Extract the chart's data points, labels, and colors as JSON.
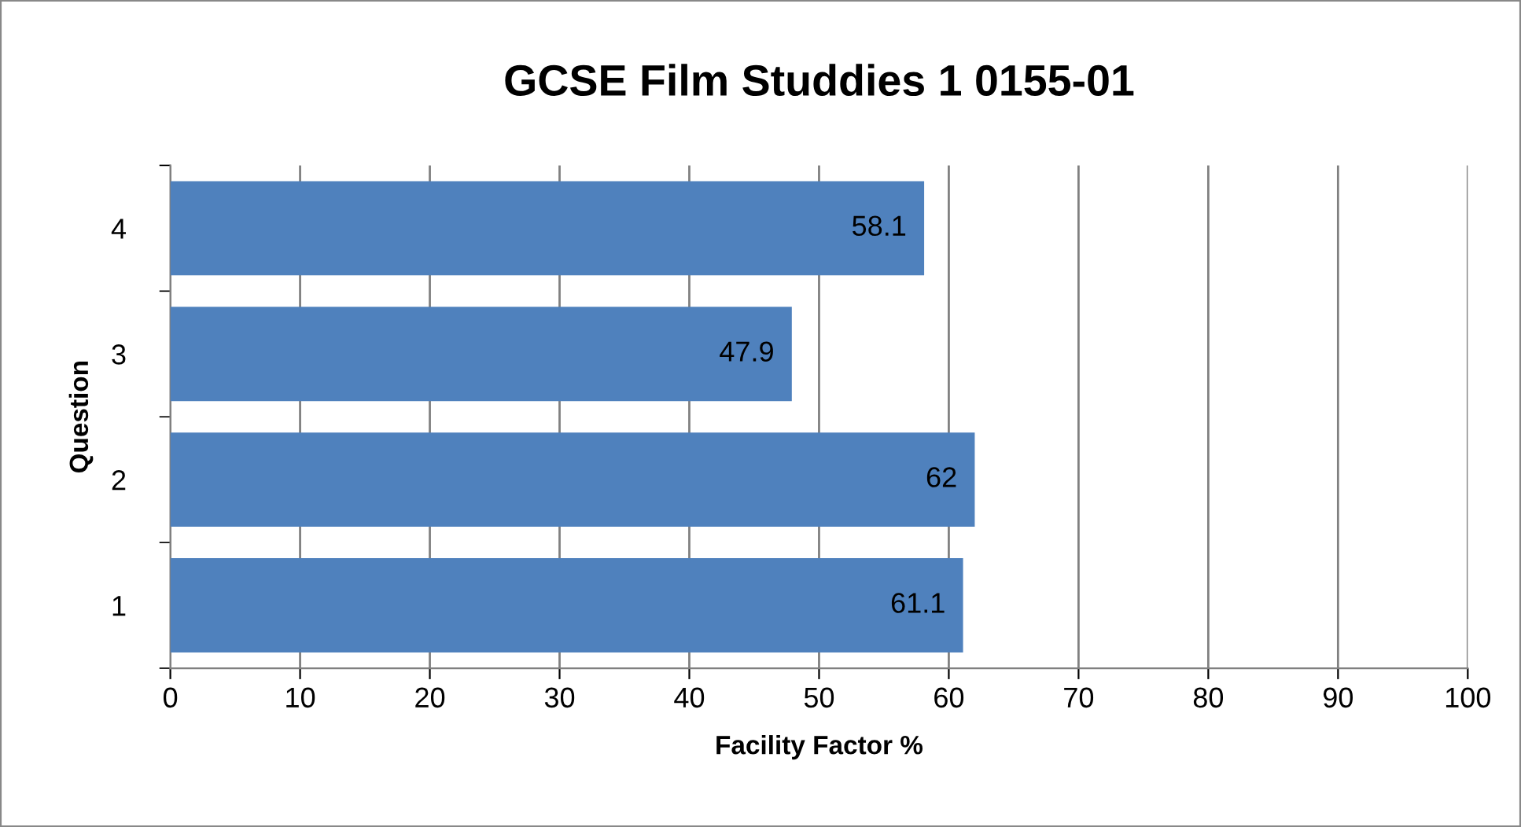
{
  "chart_data": {
    "type": "bar",
    "orientation": "horizontal",
    "title": "GCSE Film Studdies 1 0155-01",
    "xlabel": "Facility Factor %",
    "ylabel": "Question",
    "categories": [
      "4",
      "3",
      "2",
      "1"
    ],
    "values": [
      58.1,
      47.9,
      62,
      61.1
    ],
    "color": "#4f81bd",
    "xlim": [
      0,
      100
    ],
    "xticks": [
      0,
      10,
      20,
      30,
      40,
      50,
      60,
      70,
      80,
      90,
      100
    ],
    "grid": "x",
    "data_labels": true,
    "legend": false
  }
}
